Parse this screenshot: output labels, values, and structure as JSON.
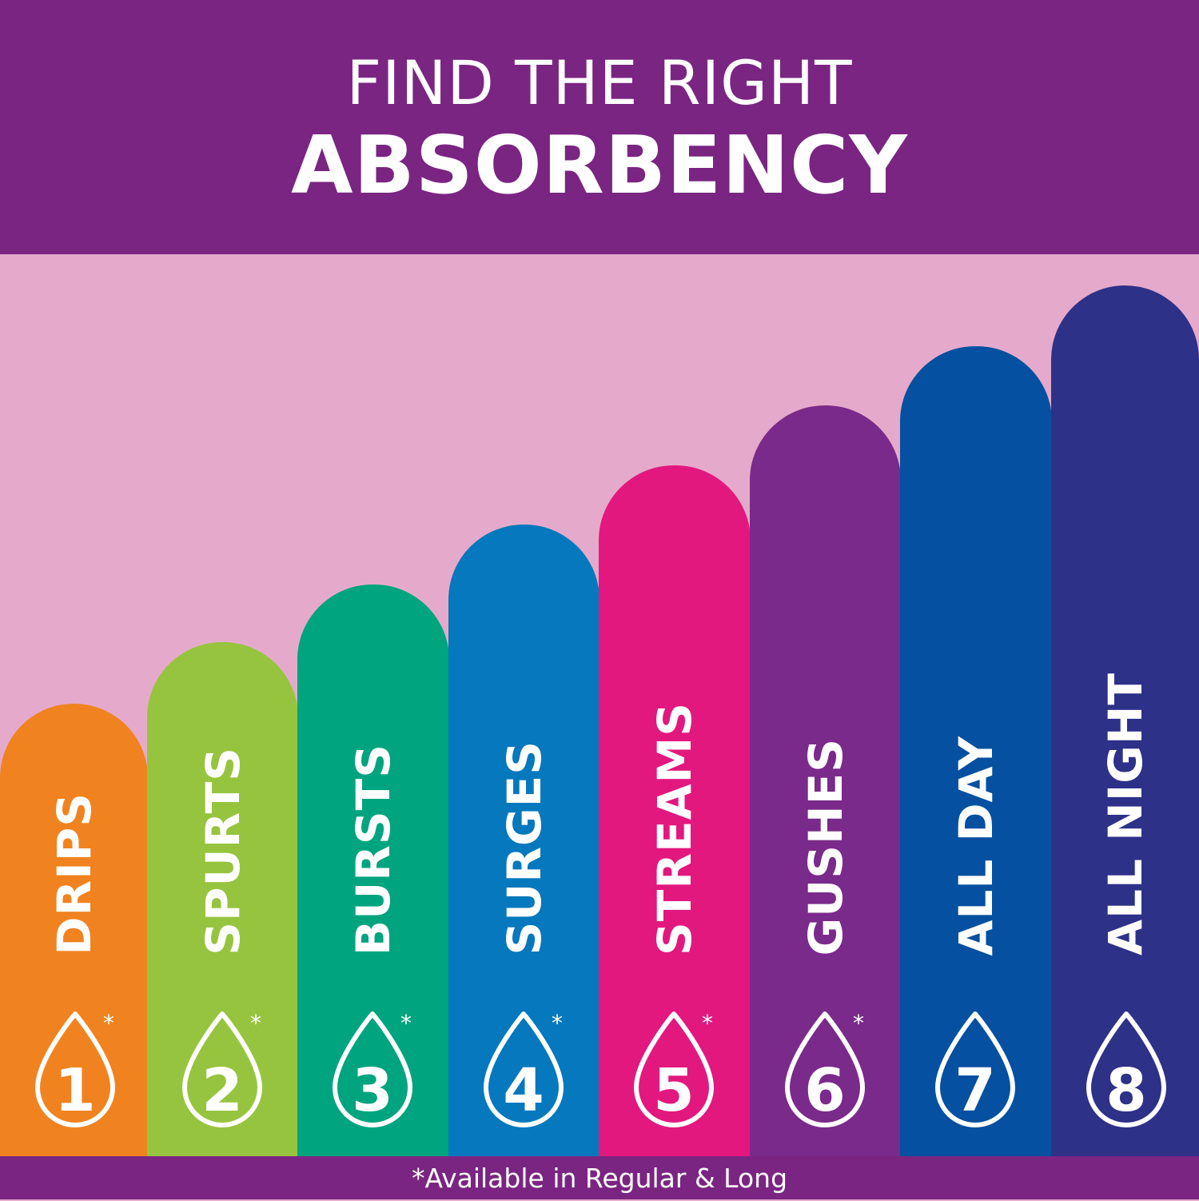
{
  "header": {
    "line1": "FIND THE RIGHT",
    "line2": "ABSORBENCY"
  },
  "bars": [
    {
      "label": "DRIPS",
      "level": "1",
      "asterisk": "*",
      "color": "#f0831f"
    },
    {
      "label": "SPURTS",
      "level": "2",
      "asterisk": "*",
      "color": "#97c43f"
    },
    {
      "label": "BURSTS",
      "level": "3",
      "asterisk": "*",
      "color": "#00a47e"
    },
    {
      "label": "SURGES",
      "level": "4",
      "asterisk": "*",
      "color": "#0678bd"
    },
    {
      "label": "STREAMS",
      "level": "5",
      "asterisk": "*",
      "color": "#e2187f"
    },
    {
      "label": "GUSHES",
      "level": "6",
      "asterisk": "*",
      "color": "#7a2a8a"
    },
    {
      "label": "ALL DAY",
      "level": "7",
      "asterisk": "",
      "color": "#0550a0"
    },
    {
      "label": "ALL NIGHT",
      "level": "8",
      "asterisk": "",
      "color": "#2e3188"
    }
  ],
  "footer": {
    "note": "*Available in Regular & Long"
  },
  "colors": {
    "header": "#7a2582",
    "background": "#e5aacb"
  }
}
